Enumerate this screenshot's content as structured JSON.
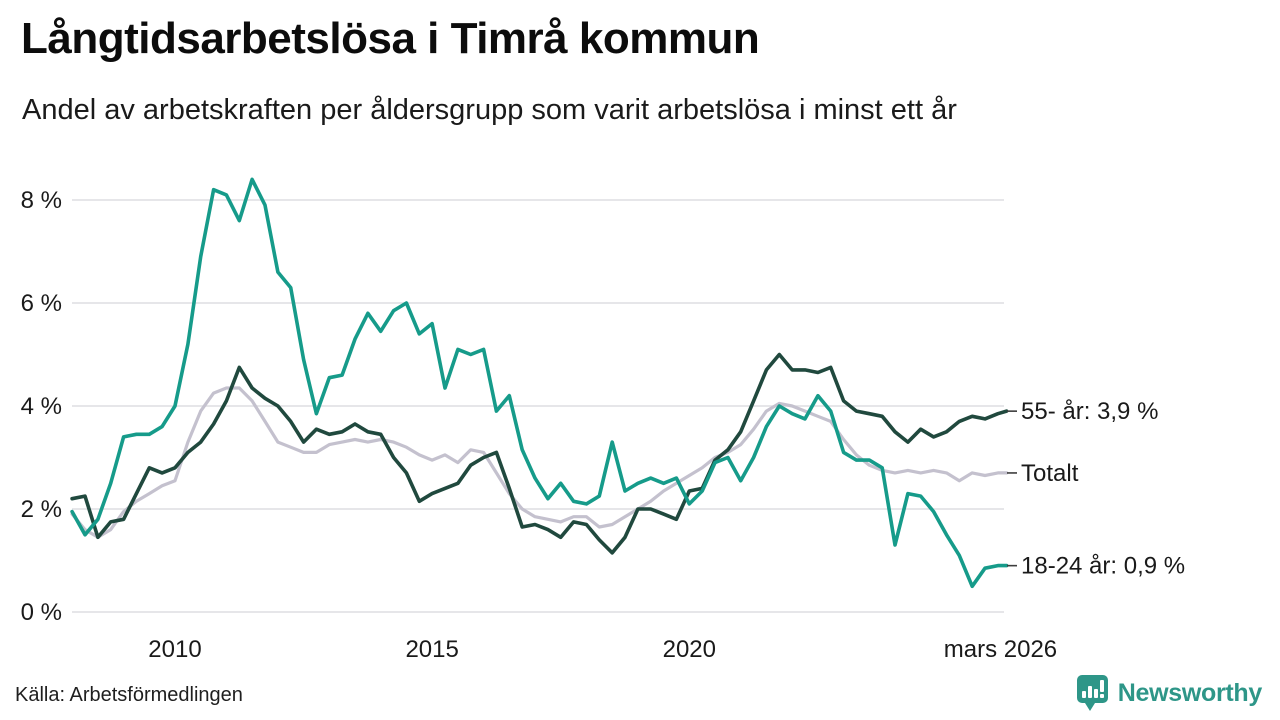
{
  "header": {
    "title": "Långtidsarbetslösa i Timrå kommun",
    "subtitle": "Andel av arbetskraften per åldersgrupp som varit arbetslösa i minst ett år"
  },
  "footer": {
    "source": "Källa: Arbetsförmedlingen",
    "logo_text": "Newsworthy"
  },
  "colors": {
    "teal": "#169b8a",
    "dark_green": "#20493e",
    "light_gray_line": "#c4c1ce",
    "gridline": "#dddde2",
    "axis_text": "#1a1a1a",
    "label_tick": "#3d3d3d",
    "logo_teal": "#2e9688"
  },
  "chart_data": {
    "type": "line",
    "title": "Långtidsarbetslösa i Timrå kommun",
    "subtitle": "Andel av arbetskraften per åldersgrupp som varit arbetslösa i minst ett år",
    "unit": "% av arbetskraften",
    "grid": true,
    "legend_position": "right-end-labels",
    "x_axis": {
      "range_years": [
        2008,
        2026.17
      ],
      "ticks": [
        {
          "year": 2010,
          "label": "2010"
        },
        {
          "year": 2015,
          "label": "2015"
        },
        {
          "year": 2020,
          "label": "2020"
        },
        {
          "year": 2026.05,
          "label": "mars 2026"
        }
      ]
    },
    "y_axis": {
      "ylim": [
        0,
        8.6
      ],
      "tick_values": [
        0,
        2,
        4,
        6,
        8
      ],
      "tick_labels": [
        "0 %",
        "2 %",
        "4 %",
        "6 %",
        "8 %"
      ]
    },
    "x": [
      2008,
      2008.25,
      2008.5,
      2008.75,
      2009,
      2009.25,
      2009.5,
      2009.75,
      2010,
      2010.25,
      2010.5,
      2010.75,
      2011,
      2011.25,
      2011.5,
      2011.75,
      2012,
      2012.25,
      2012.5,
      2012.75,
      2013,
      2013.25,
      2013.5,
      2013.75,
      2014,
      2014.25,
      2014.5,
      2014.75,
      2015,
      2015.25,
      2015.5,
      2015.75,
      2016,
      2016.25,
      2016.5,
      2016.75,
      2017,
      2017.25,
      2017.5,
      2017.75,
      2018,
      2018.25,
      2018.5,
      2018.75,
      2019,
      2019.25,
      2019.5,
      2019.75,
      2020,
      2020.25,
      2020.5,
      2020.75,
      2021,
      2021.25,
      2021.5,
      2021.75,
      2022,
      2022.25,
      2022.5,
      2022.75,
      2023,
      2023.25,
      2023.5,
      2023.75,
      2024,
      2024.25,
      2024.5,
      2024.75,
      2025,
      2025.25,
      2025.5,
      2025.75,
      2026,
      2026.17
    ],
    "series": [
      {
        "name": "Totalt",
        "end_label": "Totalt",
        "end_value_label": null,
        "color": "#c4c1ce",
        "width": 3.2,
        "values": [
          1.9,
          1.6,
          1.45,
          1.6,
          1.95,
          2.15,
          2.3,
          2.45,
          2.55,
          3.3,
          3.9,
          4.25,
          4.35,
          4.35,
          4.1,
          3.7,
          3.3,
          3.2,
          3.1,
          3.1,
          3.25,
          3.3,
          3.35,
          3.3,
          3.35,
          3.3,
          3.2,
          3.05,
          2.95,
          3.05,
          2.9,
          3.15,
          3.1,
          2.7,
          2.3,
          2.0,
          1.85,
          1.8,
          1.75,
          1.85,
          1.85,
          1.65,
          1.7,
          1.85,
          2.0,
          2.15,
          2.35,
          2.5,
          2.65,
          2.8,
          3.0,
          3.1,
          3.25,
          3.55,
          3.9,
          4.05,
          4.0,
          3.9,
          3.8,
          3.7,
          3.35,
          3.05,
          2.85,
          2.75,
          2.7,
          2.75,
          2.7,
          2.75,
          2.7,
          2.55,
          2.7,
          2.65,
          2.7,
          2.7
        ]
      },
      {
        "name": "55- år",
        "end_label": "55- år: 3,9 %",
        "end_value_label": "3,9 %",
        "color": "#20493e",
        "width": 3.6,
        "values": [
          2.2,
          2.25,
          1.45,
          1.75,
          1.8,
          2.3,
          2.8,
          2.7,
          2.8,
          3.1,
          3.3,
          3.65,
          4.1,
          4.75,
          4.35,
          4.15,
          4.0,
          3.7,
          3.3,
          3.55,
          3.45,
          3.5,
          3.65,
          3.5,
          3.45,
          3.0,
          2.7,
          2.15,
          2.3,
          2.4,
          2.5,
          2.85,
          3.0,
          3.1,
          2.4,
          1.65,
          1.7,
          1.6,
          1.45,
          1.75,
          1.7,
          1.4,
          1.15,
          1.45,
          2.0,
          2.0,
          1.9,
          1.8,
          2.35,
          2.4,
          2.95,
          3.15,
          3.5,
          4.1,
          4.7,
          5.0,
          4.7,
          4.7,
          4.65,
          4.75,
          4.1,
          3.9,
          3.85,
          3.8,
          3.5,
          3.3,
          3.55,
          3.4,
          3.5,
          3.7,
          3.8,
          3.75,
          3.85,
          3.9
        ]
      },
      {
        "name": "18-24 år",
        "end_label": "18-24 år: 0,9 %",
        "end_value_label": "0,9 %",
        "color": "#169b8a",
        "width": 3.6,
        "values": [
          1.95,
          1.5,
          1.8,
          2.5,
          3.4,
          3.45,
          3.45,
          3.6,
          4.0,
          5.2,
          6.9,
          8.2,
          8.1,
          7.6,
          8.4,
          7.9,
          6.6,
          6.3,
          4.9,
          3.85,
          4.55,
          4.6,
          5.3,
          5.8,
          5.45,
          5.85,
          6.0,
          5.4,
          5.6,
          4.35,
          5.1,
          5.0,
          5.1,
          3.9,
          4.2,
          3.15,
          2.6,
          2.2,
          2.5,
          2.15,
          2.1,
          2.25,
          3.3,
          2.35,
          2.5,
          2.6,
          2.5,
          2.6,
          2.1,
          2.35,
          2.9,
          3.0,
          2.55,
          3.0,
          3.6,
          4.0,
          3.85,
          3.75,
          4.2,
          3.9,
          3.1,
          2.95,
          2.95,
          2.8,
          1.3,
          2.3,
          2.25,
          1.95,
          1.5,
          1.1,
          0.5,
          0.85,
          0.9,
          0.9
        ]
      }
    ]
  }
}
